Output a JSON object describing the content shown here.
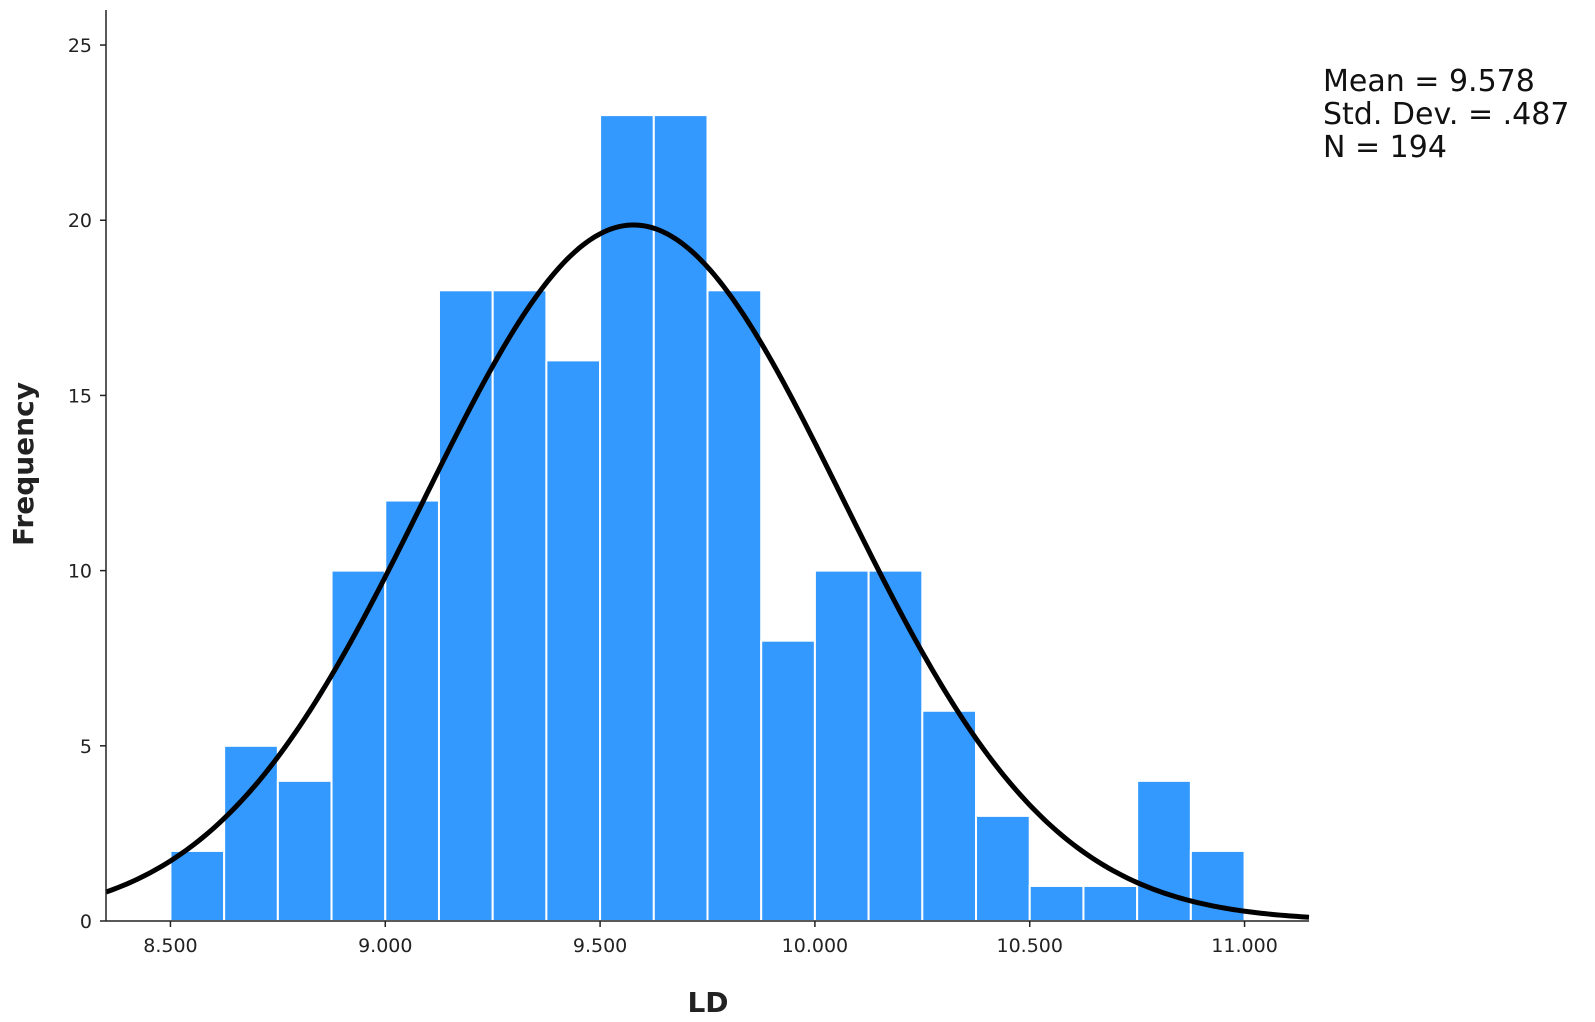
{
  "chart_data": {
    "type": "bar",
    "subtype": "histogram",
    "title": "",
    "xlabel": "LD",
    "ylabel": "Frequency",
    "bin_start": 8.5,
    "bin_width": 0.125,
    "values": [
      2,
      5,
      4,
      10,
      12,
      18,
      18,
      16,
      23,
      23,
      18,
      8,
      10,
      10,
      6,
      3,
      1,
      1,
      4,
      2
    ],
    "xlim": [
      8.35,
      11.15
    ],
    "ylim": [
      0,
      26
    ],
    "x_ticks": [
      8.5,
      9.0,
      9.5,
      10.0,
      10.5,
      11.0
    ],
    "x_tick_labels": [
      "8.500",
      "9.000",
      "9.500",
      "10.000",
      "10.500",
      "11.000"
    ],
    "y_ticks": [
      0,
      5,
      10,
      15,
      20,
      25
    ],
    "y_tick_labels": [
      "0",
      "5",
      "10",
      "15",
      "20",
      "25"
    ],
    "bar_color": "#3399ff",
    "bar_edge_color": "#ffffff",
    "curve_color": "#000000",
    "normal_curve": {
      "mean": 9.578,
      "std": 0.487,
      "n": 194
    },
    "grid": false
  },
  "stats": {
    "mean_text": "Mean = 9.578",
    "std_text": "Std. Dev. = .487",
    "n_text": "N = 194"
  }
}
